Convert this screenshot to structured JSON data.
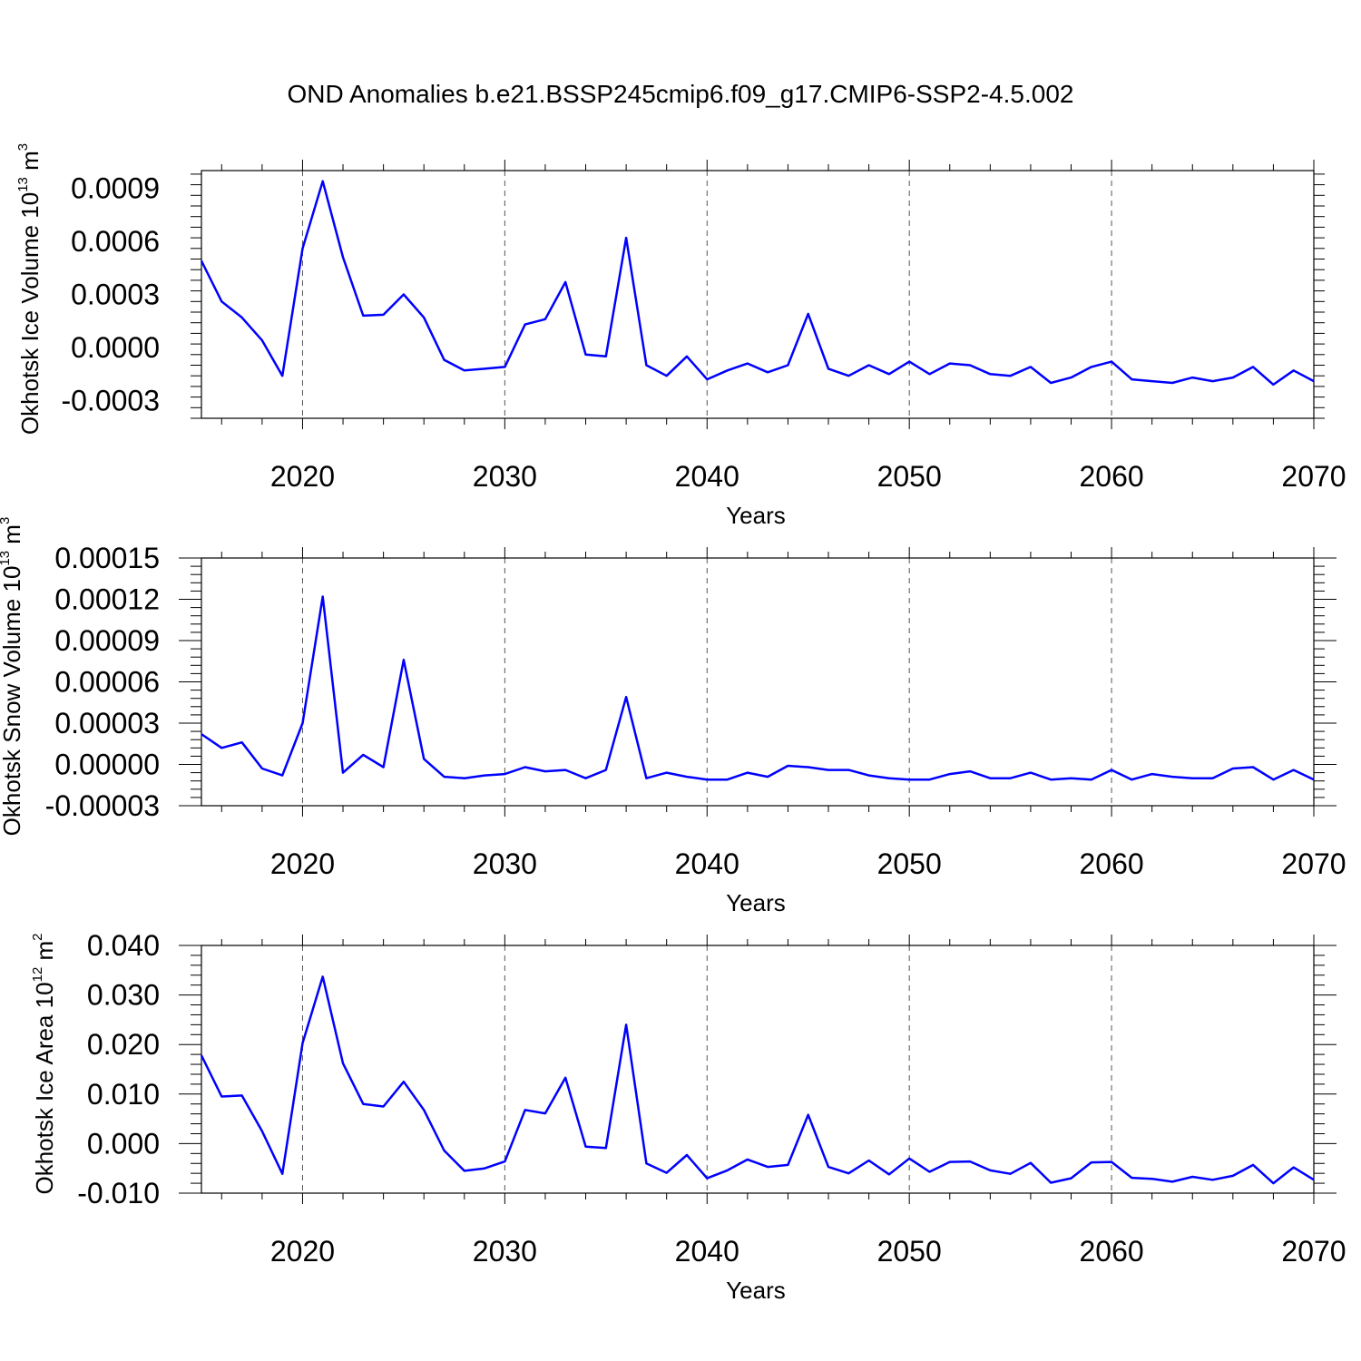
{
  "title": "OND Anomalies b.e21.BSSP245cmip6.f09_g17.CMIP6-SSP2-4.5.002",
  "colors": {
    "series": "#0000ff",
    "grid": "#555555",
    "axis": "#000000"
  },
  "chart_data": [
    {
      "type": "line",
      "xlabel": "Years",
      "ylabel": "Okhotsk Ice Volume 10",
      "ylabel_exp": "13",
      "ylabel_unit": "m",
      "ylabel_unit_exp": "3",
      "xlim": [
        2015,
        2070
      ],
      "ylim": [
        -0.0004,
        0.001
      ],
      "xticks": [
        "2020",
        "2030",
        "2040",
        "2050",
        "2060",
        "2070"
      ],
      "xtick_values": [
        2020,
        2030,
        2040,
        2050,
        2060,
        2070
      ],
      "yticks": [
        "0.0009",
        "0.0006",
        "0.0003",
        "0.0000",
        "-0.0003"
      ],
      "ytick_values": [
        0.0009,
        0.0006,
        0.0003,
        0.0,
        -0.0003
      ],
      "x": [
        2015,
        2016,
        2017,
        2018,
        2019,
        2020,
        2021,
        2022,
        2023,
        2024,
        2025,
        2026,
        2027,
        2028,
        2029,
        2030,
        2031,
        2032,
        2033,
        2034,
        2035,
        2036,
        2037,
        2038,
        2039,
        2040,
        2041,
        2042,
        2043,
        2044,
        2045,
        2046,
        2047,
        2048,
        2049,
        2050,
        2051,
        2052,
        2053,
        2054,
        2055,
        2056,
        2057,
        2058,
        2059,
        2060,
        2061,
        2062,
        2063,
        2064,
        2065,
        2066,
        2067,
        2068,
        2069,
        2070
      ],
      "values": [
        0.00049,
        0.00026,
        0.00017,
        4e-05,
        -0.00016,
        0.00056,
        0.00094,
        0.00051,
        0.00018,
        0.000185,
        0.0003,
        0.00017,
        -7e-05,
        -0.00013,
        -0.00012,
        -0.00011,
        0.00013,
        0.00016,
        0.00037,
        -4e-05,
        -5e-05,
        0.00062,
        -0.0001,
        -0.00016,
        -5e-05,
        -0.00018,
        -0.00013,
        -9e-05,
        -0.00014,
        -0.0001,
        0.00019,
        -0.00012,
        -0.00016,
        -0.0001,
        -0.00015,
        -8e-05,
        -0.00015,
        -9e-05,
        -0.0001,
        -0.00015,
        -0.00016,
        -0.00011,
        -0.0002,
        -0.00017,
        -0.00011,
        -8e-05,
        -0.00018,
        -0.00019,
        -0.0002,
        -0.00017,
        -0.00019,
        -0.00017,
        -0.00011,
        -0.00021,
        -0.00013,
        -0.00019
      ]
    },
    {
      "type": "line",
      "xlabel": "Years",
      "ylabel": "Okhotsk Snow Volume 10",
      "ylabel_exp": "13",
      "ylabel_unit": "m",
      "ylabel_unit_exp": "3",
      "xlim": [
        2015,
        2070
      ],
      "ylim": [
        -3e-05,
        0.00015
      ],
      "xticks": [
        "2020",
        "2030",
        "2040",
        "2050",
        "2060",
        "2070"
      ],
      "xtick_values": [
        2020,
        2030,
        2040,
        2050,
        2060,
        2070
      ],
      "yticks": [
        "0.00015",
        "0.00012",
        "0.00009",
        "0.00006",
        "0.00003",
        "0.00000",
        "-0.00003"
      ],
      "ytick_values": [
        0.00015,
        0.00012,
        9e-05,
        6e-05,
        3e-05,
        0.0,
        -3e-05
      ],
      "x": [
        2015,
        2016,
        2017,
        2018,
        2019,
        2020,
        2021,
        2022,
        2023,
        2024,
        2025,
        2026,
        2027,
        2028,
        2029,
        2030,
        2031,
        2032,
        2033,
        2034,
        2035,
        2036,
        2037,
        2038,
        2039,
        2040,
        2041,
        2042,
        2043,
        2044,
        2045,
        2046,
        2047,
        2048,
        2049,
        2050,
        2051,
        2052,
        2053,
        2054,
        2055,
        2056,
        2057,
        2058,
        2059,
        2060,
        2061,
        2062,
        2063,
        2064,
        2065,
        2066,
        2067,
        2068,
        2069,
        2070
      ],
      "values": [
        2.2e-05,
        1.2e-05,
        1.6e-05,
        -3e-06,
        -8e-06,
        3e-05,
        0.000122,
        -6e-06,
        7e-06,
        -2e-06,
        7.6e-05,
        4e-06,
        -9e-06,
        -1e-05,
        -8e-06,
        -7e-06,
        -2e-06,
        -5e-06,
        -4e-06,
        -1e-05,
        -4e-06,
        4.9e-05,
        -1e-05,
        -6e-06,
        -9e-06,
        -1.1e-05,
        -1.1e-05,
        -6e-06,
        -9e-06,
        -1e-06,
        -2e-06,
        -4e-06,
        -4e-06,
        -8e-06,
        -1e-05,
        -1.1e-05,
        -1.1e-05,
        -7e-06,
        -5e-06,
        -1e-05,
        -1e-05,
        -6e-06,
        -1.1e-05,
        -1e-05,
        -1.1e-05,
        -4e-06,
        -1.1e-05,
        -7e-06,
        -9e-06,
        -1e-05,
        -1e-05,
        -3e-06,
        -2e-06,
        -1.1e-05,
        -4e-06,
        -1.1e-05
      ]
    },
    {
      "type": "line",
      "xlabel": "Years",
      "ylabel": "Okhotsk Ice Area 10",
      "ylabel_exp": "12",
      "ylabel_unit": "m",
      "ylabel_unit_exp": "2",
      "xlim": [
        2015,
        2070
      ],
      "ylim": [
        -0.01,
        0.04
      ],
      "xticks": [
        "2020",
        "2030",
        "2040",
        "2050",
        "2060",
        "2070"
      ],
      "xtick_values": [
        2020,
        2030,
        2040,
        2050,
        2060,
        2070
      ],
      "yticks": [
        "0.040",
        "0.030",
        "0.020",
        "0.010",
        "0.000",
        "-0.010"
      ],
      "ytick_values": [
        0.04,
        0.03,
        0.02,
        0.01,
        0.0,
        -0.01
      ],
      "x": [
        2015,
        2016,
        2017,
        2018,
        2019,
        2020,
        2021,
        2022,
        2023,
        2024,
        2025,
        2026,
        2027,
        2028,
        2029,
        2030,
        2031,
        2032,
        2033,
        2034,
        2035,
        2036,
        2037,
        2038,
        2039,
        2040,
        2041,
        2042,
        2043,
        2044,
        2045,
        2046,
        2047,
        2048,
        2049,
        2050,
        2051,
        2052,
        2053,
        2054,
        2055,
        2056,
        2057,
        2058,
        2059,
        2060,
        2061,
        2062,
        2063,
        2064,
        2065,
        2066,
        2067,
        2068,
        2069,
        2070
      ],
      "values": [
        0.0178,
        0.0095,
        0.0097,
        0.0025,
        -0.0061,
        0.0203,
        0.0337,
        0.0162,
        0.008,
        0.0075,
        0.0125,
        0.0068,
        -0.0014,
        -0.0055,
        -0.005,
        -0.0036,
        0.0068,
        0.0061,
        0.0133,
        -0.0006,
        -0.0009,
        0.024,
        -0.004,
        -0.0059,
        -0.0023,
        -0.007,
        -0.0054,
        -0.0032,
        -0.0047,
        -0.0043,
        0.0058,
        -0.0047,
        -0.006,
        -0.0034,
        -0.0062,
        -0.003,
        -0.0057,
        -0.0037,
        -0.0036,
        -0.0054,
        -0.0061,
        -0.0039,
        -0.0079,
        -0.007,
        -0.0038,
        -0.0037,
        -0.0069,
        -0.0071,
        -0.0077,
        -0.0067,
        -0.0073,
        -0.0065,
        -0.0043,
        -0.008,
        -0.0048,
        -0.0073
      ]
    }
  ]
}
